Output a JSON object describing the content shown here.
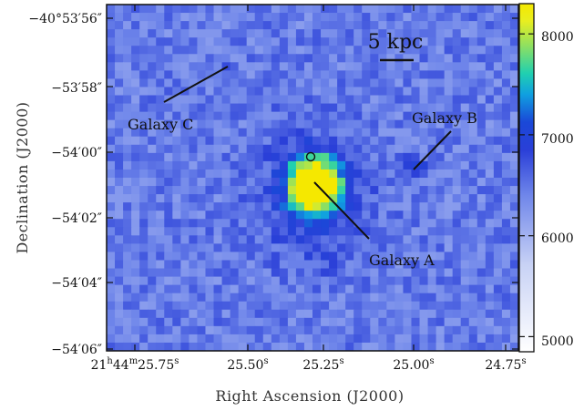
{
  "chart_data": {
    "type": "heatmap",
    "xlabel": "Right Ascension (J2000)",
    "ylabel": "Declination (J2000)",
    "x_ticks": [
      {
        "main": "21",
        "sup1": "h",
        "mid": "44",
        "sup2": "m",
        "val": "25.75",
        "sup3": "s"
      },
      {
        "main": "",
        "sup1": "",
        "mid": "",
        "sup2": "",
        "val": "25.50",
        "sup3": "s"
      },
      {
        "main": "",
        "sup1": "",
        "mid": "",
        "sup2": "",
        "val": "25.25",
        "sup3": "s"
      },
      {
        "main": "",
        "sup1": "",
        "mid": "",
        "sup2": "",
        "val": "25.00",
        "sup3": "s"
      },
      {
        "main": "",
        "sup1": "",
        "mid": "",
        "sup2": "",
        "val": "24.75",
        "sup3": "s"
      }
    ],
    "y_ticks": [
      "−40°53′56″",
      "−53′58″",
      "−54′00″",
      "−54′02″",
      "−54′04″",
      "−54′06″"
    ],
    "colorbar": {
      "range": [
        4850,
        8300
      ],
      "ticks": [
        "5000",
        "6000",
        "7000",
        "8000"
      ],
      "tick_values": [
        5000,
        6000,
        7000,
        8000
      ]
    },
    "annotations": [
      {
        "label": "Galaxy A"
      },
      {
        "label": "Galaxy B"
      },
      {
        "label": "Galaxy C"
      }
    ],
    "scale_bar": "5 kpc",
    "background_level": 6450,
    "sources": [
      {
        "name": "Galaxy A",
        "peak": 8250
      },
      {
        "name": "Galaxy B",
        "peak": 7000
      },
      {
        "name": "Galaxy C",
        "peak": 6900
      }
    ]
  }
}
